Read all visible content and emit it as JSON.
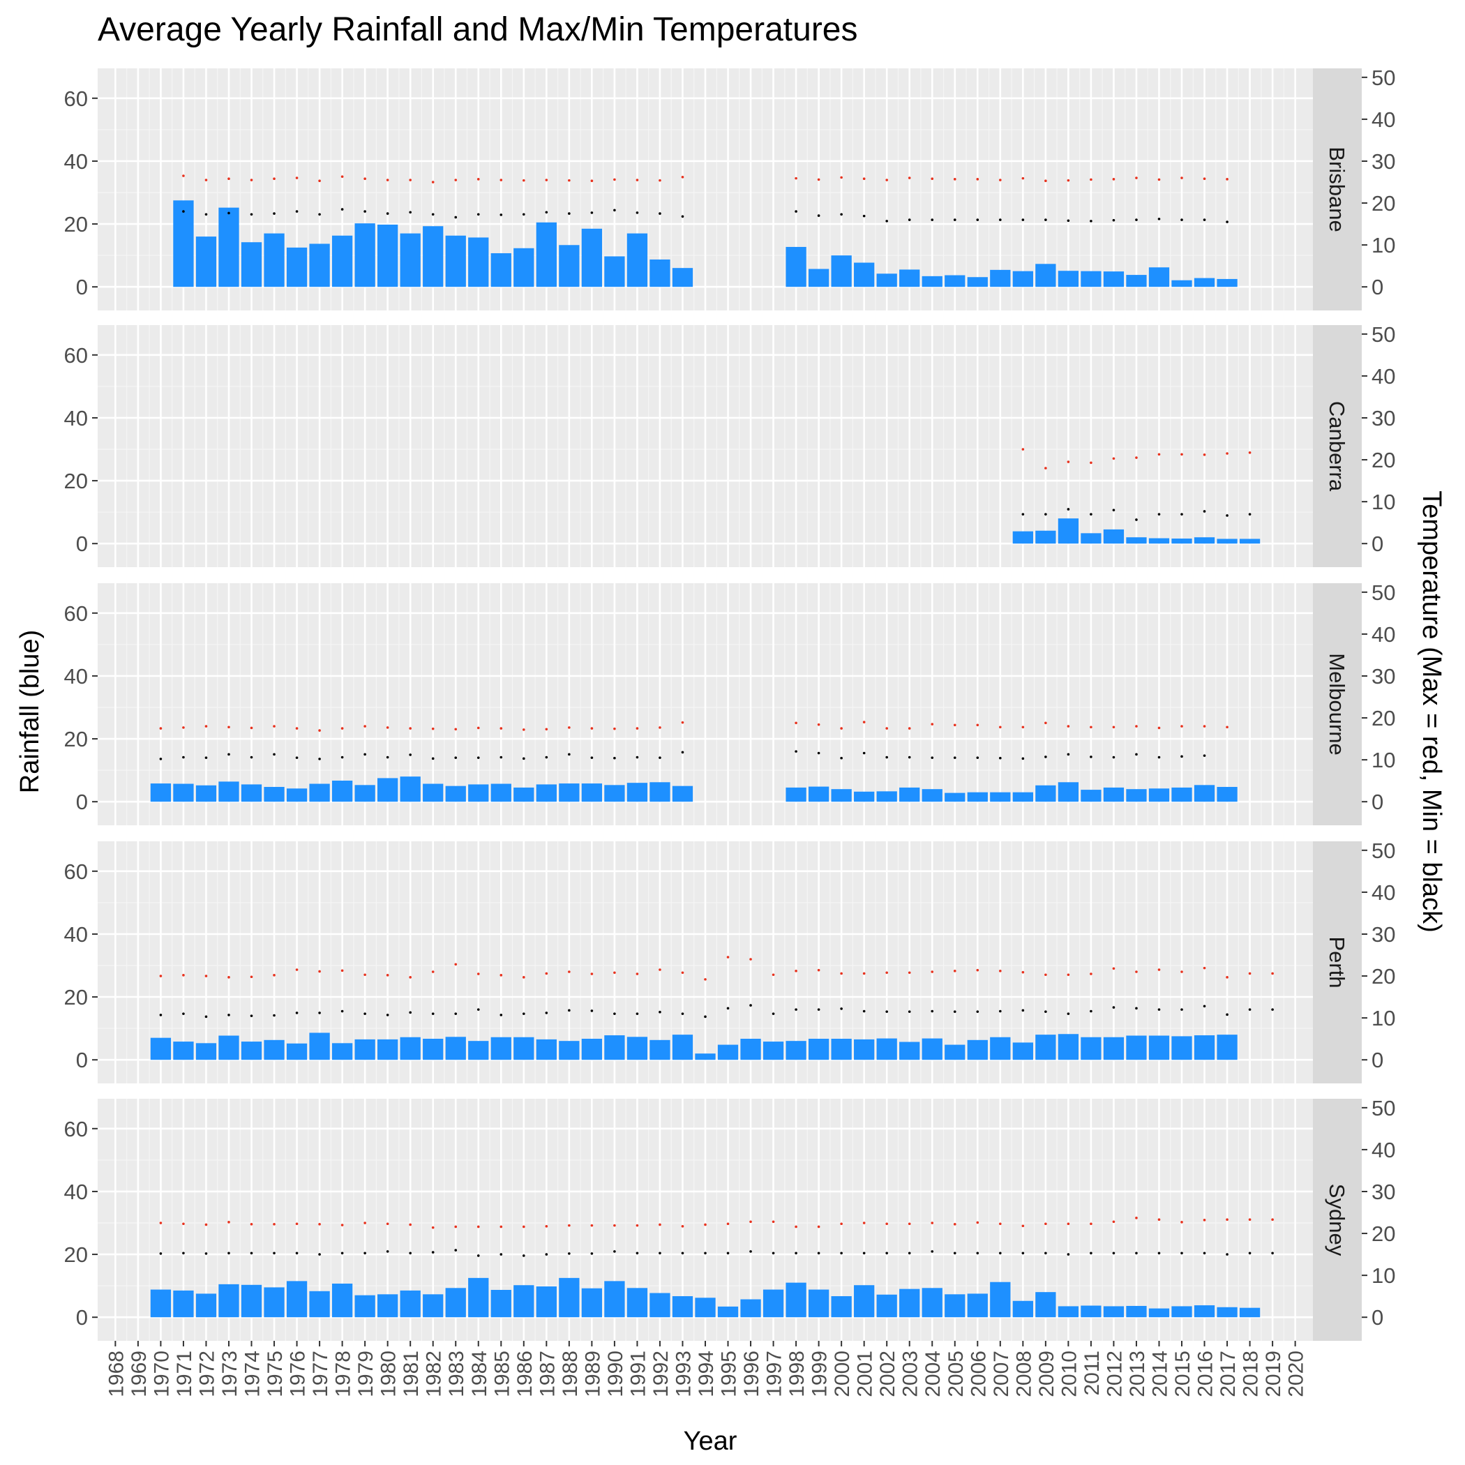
{
  "chart_data": {
    "type": "bar",
    "title": "Average Yearly Rainfall and Max/Min Temperatures",
    "xlabel": "Year",
    "ylabel": "Rainfall (blue)",
    "ylabel_right": "Temperature (Max = red, Min = black)",
    "x_ticks": [
      1968,
      1969,
      1970,
      1971,
      1972,
      1973,
      1974,
      1975,
      1976,
      1977,
      1978,
      1979,
      1980,
      1981,
      1982,
      1983,
      1984,
      1985,
      1986,
      1987,
      1988,
      1989,
      1990,
      1991,
      1992,
      1993,
      1994,
      1995,
      1996,
      1997,
      1998,
      1999,
      2000,
      2001,
      2002,
      2003,
      2004,
      2005,
      2006,
      2007,
      2008,
      2009,
      2010,
      2011,
      2012,
      2013,
      2014,
      2015,
      2016,
      2017,
      2018,
      2019,
      2020
    ],
    "ylim": [
      -7.5,
      69.5
    ],
    "y_ticks": [
      0,
      20,
      40,
      60
    ],
    "y2_ticks": [
      0,
      10,
      20,
      30,
      40,
      50
    ],
    "temp_scale": 1.333,
    "grid": true,
    "colors": {
      "rainfall": "#1E90FF",
      "max_temp": "#E8321E",
      "min_temp": "#000000",
      "panel_bg": "#EBEBEB",
      "strip_bg": "#D9D9D9"
    },
    "panels": [
      {
        "name": "Brisbane",
        "start_year": 1971,
        "rainfall": [
          27.5,
          16,
          25.2,
          14.2,
          17,
          12.5,
          13.7,
          16.3,
          20.2,
          19.8,
          17,
          19.3,
          16.3,
          15.7,
          10.7,
          12.3,
          20.5,
          13.3,
          18.5,
          9.7,
          17,
          8.7,
          6,
          null,
          null,
          null,
          null,
          12.7,
          5.7,
          10,
          7.7,
          4.2,
          5.5,
          3.4,
          3.7,
          3.1,
          5.4,
          5,
          7.3,
          5.1,
          5,
          4.9,
          3.8,
          6.2,
          2.1,
          2.8,
          2.5
        ],
        "max_temp": [
          26.5,
          25.5,
          25.8,
          25.5,
          25.8,
          26,
          25.3,
          26.3,
          25.8,
          25.5,
          25.5,
          25,
          25.5,
          25.7,
          25.5,
          25.4,
          25.5,
          25.4,
          25.3,
          25.6,
          25.5,
          25.4,
          26.2,
          null,
          null,
          null,
          null,
          25.9,
          25.6,
          26.1,
          25.8,
          25.5,
          26,
          25.8,
          25.7,
          25.7,
          25.5,
          25.9,
          25.3,
          25.4,
          25.6,
          25.7,
          26,
          25.6,
          26,
          25.8,
          25.7
        ],
        "min_temp": [
          18,
          17.3,
          17.6,
          17.3,
          17.5,
          18,
          17.3,
          18.5,
          18,
          17.5,
          17.8,
          17.3,
          16.6,
          17.3,
          17.2,
          17.3,
          17.8,
          17.5,
          17.7,
          18.3,
          17.7,
          17.5,
          16.8,
          null,
          null,
          null,
          null,
          18,
          17,
          17.3,
          16.9,
          15.7,
          16,
          16,
          16,
          16,
          16,
          16,
          16,
          15.8,
          15.7,
          15.9,
          16,
          16.2,
          16,
          16,
          15.5
        ]
      },
      {
        "name": "Canberra",
        "start_year": 2008,
        "rainfall": [
          3.9,
          4.1,
          8,
          3.3,
          4.5,
          2,
          1.7,
          1.6,
          2,
          1.5,
          1.5
        ],
        "max_temp": [
          22.5,
          18,
          19.5,
          19.3,
          20.3,
          20.5,
          21.3,
          21.3,
          21.2,
          21.5,
          21.7
        ],
        "min_temp": [
          7,
          7,
          8.2,
          7,
          8,
          5.7,
          7,
          7,
          7.7,
          6.7,
          7
        ]
      },
      {
        "name": "Melbourne",
        "start_year": 1970,
        "rainfall": [
          5.8,
          5.7,
          5.2,
          6.4,
          5.5,
          4.7,
          4.2,
          5.7,
          6.7,
          5.3,
          7.5,
          8,
          5.7,
          5,
          5.5,
          5.7,
          4.5,
          5.5,
          5.8,
          5.8,
          5.3,
          6,
          6.2,
          5,
          null,
          null,
          null,
          null,
          4.5,
          4.8,
          4,
          3.2,
          3.3,
          4.5,
          4,
          2.8,
          3,
          3,
          3,
          5.2,
          6.2,
          3.8,
          4.5,
          4,
          4.2,
          4.5,
          5.3,
          4.7
        ],
        "max_temp": [
          17.5,
          17.7,
          18,
          17.8,
          17.6,
          18,
          17.5,
          17,
          17.5,
          18,
          17.7,
          17.5,
          17.4,
          17.3,
          17.6,
          17.5,
          17.2,
          17.3,
          17.7,
          17.5,
          17.4,
          17.5,
          17.7,
          18.9,
          null,
          null,
          null,
          null,
          18.8,
          18.4,
          17.5,
          19,
          17.5,
          17.5,
          18.5,
          18.3,
          18.3,
          17.8,
          17.8,
          18.8,
          18,
          17.8,
          17.8,
          18,
          17.6,
          18,
          18,
          17.8
        ],
        "min_temp": [
          10.2,
          10.6,
          10.5,
          11.3,
          10.6,
          11.3,
          10.5,
          10.2,
          10.6,
          11.3,
          10.6,
          11.2,
          10.3,
          10.5,
          10.5,
          10.6,
          10.3,
          10.6,
          11.3,
          10.5,
          10.4,
          10.6,
          10.5,
          11.8,
          null,
          null,
          null,
          null,
          12,
          11.6,
          10.4,
          11.6,
          10.6,
          10.6,
          10.5,
          10.5,
          10.5,
          10.4,
          10.3,
          10.7,
          11.3,
          10.7,
          10.6,
          11.3,
          10.6,
          10.8,
          11
        ]
      },
      {
        "name": "Perth",
        "start_year": 1970,
        "rainfall": [
          7,
          5.8,
          5.3,
          7.7,
          5.8,
          6.3,
          5.2,
          8.6,
          5.3,
          6.5,
          6.5,
          7.2,
          6.7,
          7.3,
          6,
          7.2,
          7.2,
          6.5,
          6,
          6.7,
          7.8,
          7.3,
          6.3,
          8,
          2,
          4.8,
          6.7,
          5.8,
          6,
          6.7,
          6.7,
          6.5,
          6.8,
          5.7,
          6.8,
          4.8,
          6.3,
          7.2,
          5.5,
          8,
          8.2,
          7.2,
          7.2,
          7.7,
          7.7,
          7.5,
          7.8,
          8
        ],
        "max_temp": [
          20,
          20.2,
          20,
          19.7,
          19.8,
          20.2,
          21.5,
          21.1,
          21.3,
          20.3,
          20.2,
          19.7,
          21,
          22.8,
          20.5,
          20.2,
          19.7,
          20.6,
          21,
          20.5,
          20.8,
          20.5,
          21.5,
          20.8,
          19.2,
          24.5,
          24,
          20.3,
          21.2,
          21.4,
          20.6,
          20.6,
          20.8,
          20.8,
          21,
          21.2,
          21.4,
          21.2,
          20.9,
          20.3,
          20.3,
          20.5,
          21.8,
          21,
          21.5,
          21,
          21.9,
          19.7,
          20.6,
          20.6
        ],
        "min_temp": [
          10.7,
          11,
          10.3,
          10.7,
          10.5,
          10.6,
          11.2,
          11.2,
          11.6,
          11,
          10.7,
          11.3,
          11,
          11,
          12,
          10.7,
          11,
          11.2,
          11.8,
          11.7,
          11,
          11,
          11.4,
          11,
          10.3,
          12.3,
          13,
          11,
          12,
          12,
          12.2,
          11.6,
          11.5,
          11.5,
          11.6,
          11.5,
          11.5,
          11.6,
          11.8,
          11.5,
          11,
          11.6,
          12.5,
          12.3,
          12,
          12,
          12.8,
          10.8,
          12,
          12
        ],
        "min_temp_note": ""
      },
      {
        "name": "Sydney",
        "start_year": 1970,
        "rainfall": [
          8.8,
          8.5,
          7.5,
          10.5,
          10.3,
          9.5,
          11.5,
          8.3,
          10.7,
          7,
          7.3,
          8.5,
          7.3,
          9.3,
          12.5,
          8.7,
          10.2,
          9.8,
          12.5,
          9.2,
          11.5,
          9.3,
          7.7,
          6.7,
          6.2,
          3.4,
          5.7,
          8.8,
          11,
          8.8,
          6.7,
          10.2,
          7.2,
          9,
          9.3,
          7.3,
          7.5,
          11.2,
          5.2,
          8,
          3.5,
          3.7,
          3.5,
          3.6,
          2.8,
          3.5,
          3.8,
          3.2,
          3
        ],
        "max_temp": [
          22.5,
          22.3,
          22.1,
          22.7,
          22.2,
          22.2,
          22.3,
          22.2,
          22,
          22.5,
          22.3,
          22.1,
          21.4,
          21.6,
          21.6,
          21.6,
          21.6,
          21.7,
          21.9,
          21.9,
          21.9,
          21.9,
          22.1,
          21.7,
          22.1,
          22.3,
          22.8,
          22.8,
          21.6,
          21.6,
          22.3,
          22.5,
          22.3,
          22.3,
          22.5,
          22.2,
          22.6,
          22.3,
          21.8,
          22.3,
          22.3,
          22.3,
          22.8,
          23.7,
          23.3,
          22.7,
          23.2,
          23.3,
          23.3,
          23.3
        ],
        "min_temp": [
          15.2,
          15.3,
          15.2,
          15.3,
          15.3,
          15.3,
          15.3,
          15,
          15.3,
          15.3,
          15.7,
          15.3,
          15.5,
          16,
          14.7,
          15,
          14.7,
          15,
          15.2,
          15.2,
          15.7,
          15.3,
          15.3,
          15.3,
          15.3,
          15.3,
          15.7,
          15.3,
          15.3,
          15.3,
          15.3,
          15.3,
          15.3,
          15.3,
          15.7,
          15.3,
          15.3,
          15.3,
          15.3,
          15.3,
          15,
          15.3,
          15.3,
          15.3,
          15.3,
          15.3,
          15.3,
          15,
          15.3,
          15.3
        ]
      }
    ]
  }
}
